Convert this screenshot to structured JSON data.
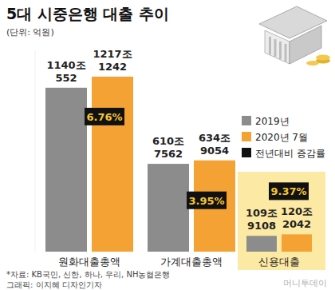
{
  "chart_data": {
    "type": "bar",
    "title": "5대 시중은행 대출 추이",
    "subtitle": "(단위: 억원)",
    "categories": [
      "원화대출총액",
      "가계대출총액",
      "신용대출"
    ],
    "series": [
      {
        "name": "2019년",
        "color": "#8c8c8c",
        "values": [
          11400552,
          6107562,
          1099108
        ],
        "value_labels": [
          "1140조\n552",
          "610조\n7562",
          "109조\n9108"
        ]
      },
      {
        "name": "2020년 7월",
        "color": "#f4a234",
        "values": [
          12171242,
          6349054,
          1202042
        ],
        "value_labels": [
          "1217조\n1242",
          "634조\n9054",
          "120조\n2042"
        ]
      },
      {
        "name": "전년대비 증감률",
        "type": "label",
        "color": "#111111",
        "values": [
          6.76,
          3.95,
          9.37
        ],
        "value_labels": [
          "6.76%",
          "3.95%",
          "9.37%"
        ]
      }
    ],
    "ylim": [
      0,
      14000000
    ],
    "yticks": [],
    "tick_labels": false,
    "data_labels": true,
    "legend": "right",
    "source": "*자료: KB국민, 신한, 하나, 우리, NH농협은행",
    "credit": "그래픽: 이지혜 디자인기자",
    "watermark": "머니투데이"
  }
}
